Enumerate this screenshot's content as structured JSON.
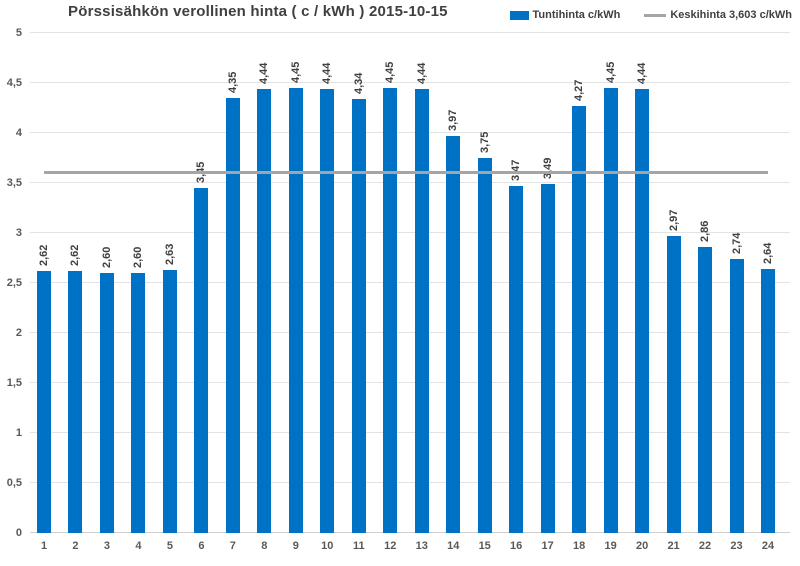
{
  "title": "Pörssisähkön verollinen hinta ( c / kWh ) 2015-10-15",
  "legend": {
    "series_label": "Tuntihinta c/kWh",
    "average_label": "Keskihinta 3,603 c/kWh"
  },
  "colors": {
    "bar": "#0072C6",
    "average_line": "#A5A5A5",
    "gridline": "#E3E3E3",
    "axis_text": "#595959",
    "title_text": "#404040"
  },
  "chart_data": {
    "type": "bar",
    "title": "Pörssisähkön verollinen hinta ( c / kWh ) 2015-10-15",
    "categories": [
      "1",
      "2",
      "3",
      "4",
      "5",
      "6",
      "7",
      "8",
      "9",
      "10",
      "11",
      "12",
      "13",
      "14",
      "15",
      "16",
      "17",
      "18",
      "19",
      "20",
      "21",
      "22",
      "23",
      "24"
    ],
    "values": [
      2.62,
      2.62,
      2.6,
      2.6,
      2.63,
      3.45,
      4.35,
      4.44,
      4.45,
      4.44,
      4.34,
      4.45,
      4.44,
      3.97,
      3.75,
      3.47,
      3.49,
      4.27,
      4.45,
      4.44,
      2.97,
      2.86,
      2.74,
      2.64
    ],
    "value_labels": [
      "2,62",
      "2,62",
      "2,60",
      "2,60",
      "2,63",
      "3,45",
      "4,35",
      "4,44",
      "4,45",
      "4,44",
      "4,34",
      "4,45",
      "4,44",
      "3,97",
      "3,75",
      "3,47",
      "3,49",
      "4,27",
      "4,45",
      "4,44",
      "2,97",
      "2,86",
      "2,74",
      "2,64"
    ],
    "series_name": "Tuntihinta c/kWh",
    "average_line": {
      "value": 3.603,
      "label": "Keskihinta 3,603 c/kWh"
    },
    "xlabel": "",
    "ylabel": "",
    "ylim": [
      0,
      5
    ],
    "ytick_values": [
      0,
      0.5,
      1,
      1.5,
      2,
      2.5,
      3,
      3.5,
      4,
      4.5,
      5
    ],
    "ytick_labels": [
      "0",
      "0,5",
      "1",
      "1,5",
      "2",
      "2,5",
      "3",
      "3,5",
      "4",
      "4,5",
      "5"
    ],
    "grid": true,
    "legend_position": "top-right"
  }
}
